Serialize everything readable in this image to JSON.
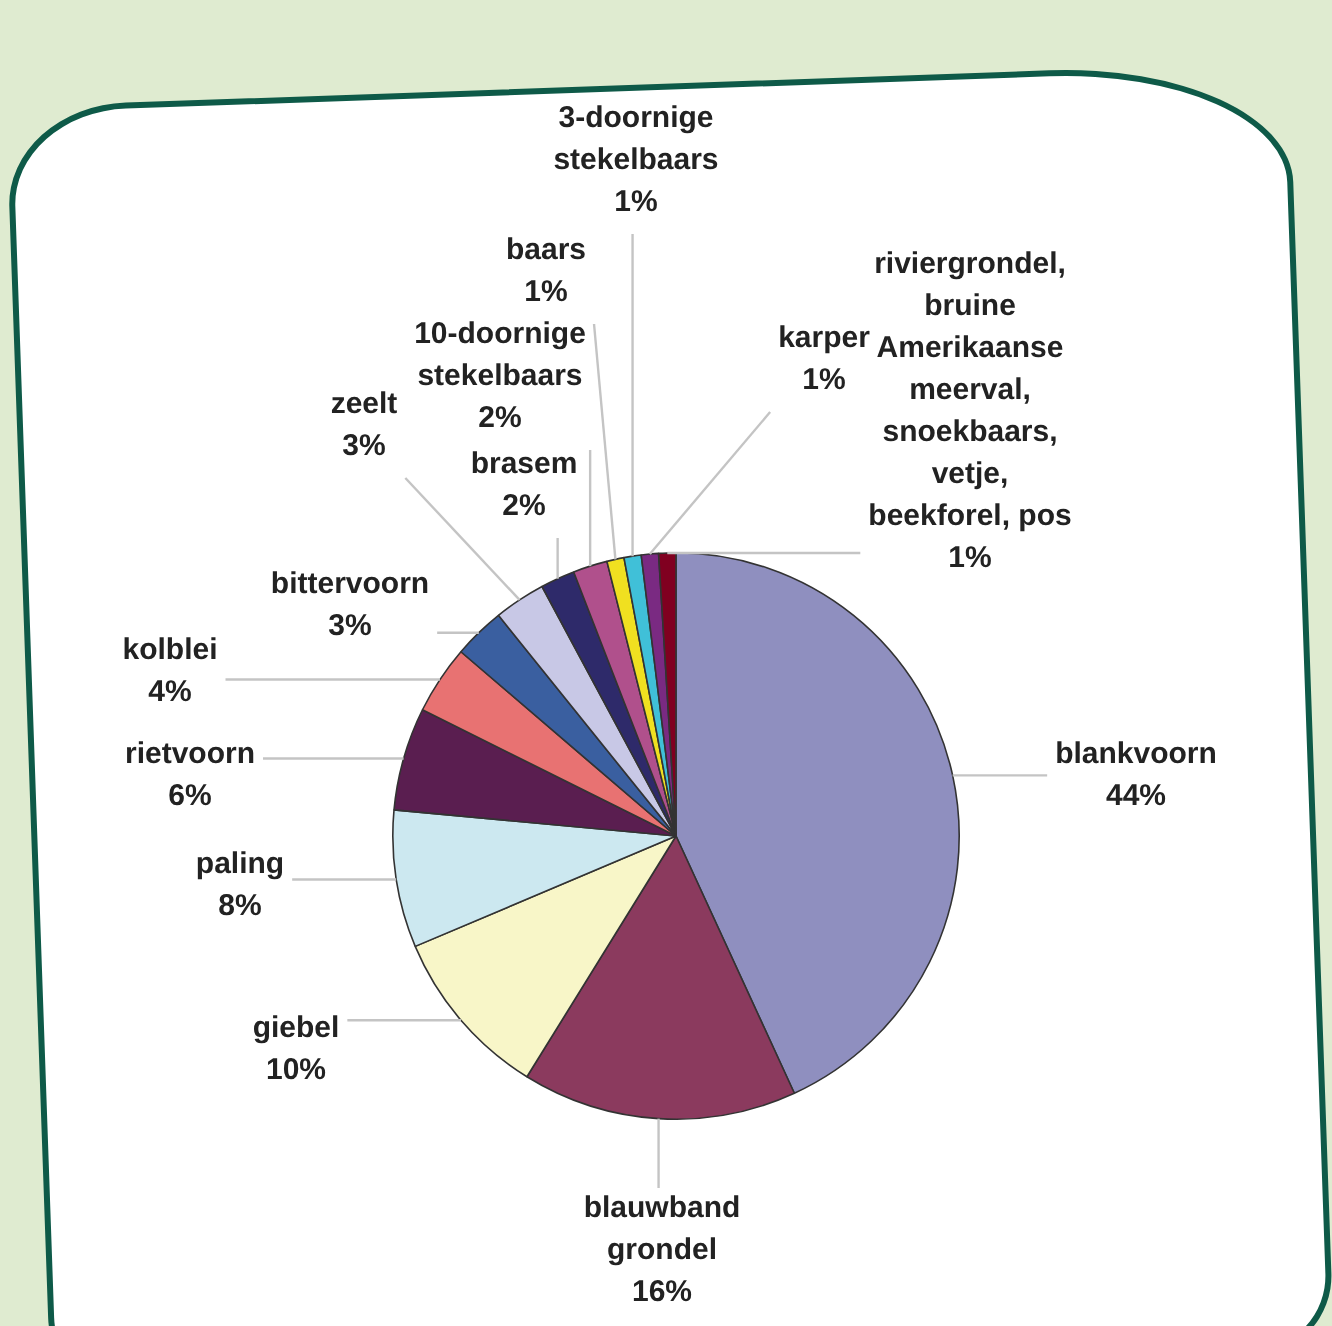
{
  "chart_data": {
    "type": "pie",
    "categories": [
      "blankvoorn",
      "blauwband grondel",
      "giebel",
      "paling",
      "rietvoorn",
      "kolblei",
      "bittervoorn",
      "zeelt",
      "brasem",
      "10-doornige stekelbaars",
      "baars",
      "3-doornige stekelbaars",
      "karper",
      "riviergrondel, bruine Amerikaanse meerval, snoekbaars, vetje, beekforel, pos"
    ],
    "values": [
      44,
      16,
      10,
      8,
      6,
      4,
      3,
      3,
      2,
      2,
      1,
      1,
      1,
      1
    ],
    "value_labels": [
      "44%",
      "16%",
      "10%",
      "8%",
      "6%",
      "4%",
      "3%",
      "3%",
      "2%",
      "2%",
      "1%",
      "1%",
      "1%",
      "1%"
    ],
    "colors": [
      "#8f8fbf",
      "#8b3a5e",
      "#f8f6c8",
      "#cce8f0",
      "#5a1e50",
      "#e87272",
      "#3a5fa0",
      "#c8c8e6",
      "#2e2a6a",
      "#b0508c",
      "#f0e020",
      "#40c0d8",
      "#7a2a82",
      "#800020"
    ],
    "legend": false
  }
}
